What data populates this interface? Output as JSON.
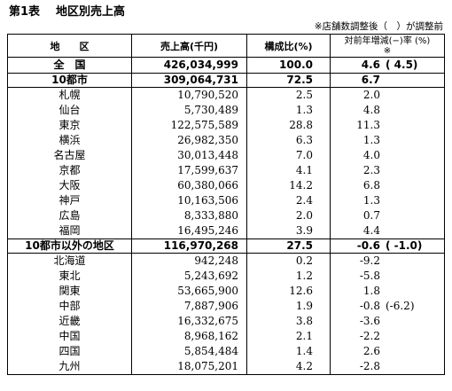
{
  "title": {
    "number": "第1表",
    "text": "地区別売上高"
  },
  "note": "※店舗数調整後（　）が調整前",
  "table": {
    "headers": {
      "region": "地　　区",
      "sales": "売上高(千円)",
      "share": "構成比(%)",
      "change": "対前年増減(−)率 (%)",
      "change_note": "※"
    },
    "rows": [
      {
        "level": "total",
        "region": "全　国",
        "sales": "426,034,999",
        "share": "100.0",
        "change": "4.6",
        "change_before": "( 4.5)"
      },
      {
        "level": "group",
        "region": "10都市",
        "sales": "309,064,731",
        "share": "72.5",
        "change": "6.7"
      },
      {
        "level": "region",
        "region": "札幌",
        "sales": "10,790,520",
        "share": "2.5",
        "change": "2.0"
      },
      {
        "level": "region",
        "region": "仙台",
        "sales": "5,730,489",
        "share": "1.3",
        "change": "4.8"
      },
      {
        "level": "region",
        "region": "東京",
        "sales": "122,575,589",
        "share": "28.8",
        "change": "11.3"
      },
      {
        "level": "region",
        "region": "横浜",
        "sales": "26,982,350",
        "share": "6.3",
        "change": "1.3"
      },
      {
        "level": "region",
        "region": "名古屋",
        "sales": "30,013,448",
        "share": "7.0",
        "change": "4.0"
      },
      {
        "level": "region",
        "region": "京都",
        "sales": "17,599,637",
        "share": "4.1",
        "change": "2.3"
      },
      {
        "level": "region",
        "region": "大阪",
        "sales": "60,380,066",
        "share": "14.2",
        "change": "6.8"
      },
      {
        "level": "region",
        "region": "神戸",
        "sales": "10,163,506",
        "share": "2.4",
        "change": "1.3"
      },
      {
        "level": "region",
        "region": "広島",
        "sales": "8,333,880",
        "share": "2.0",
        "change": "0.7"
      },
      {
        "level": "region",
        "region": "福岡",
        "sales": "16,495,246",
        "share": "3.9",
        "change": "4.4"
      },
      {
        "level": "group",
        "region": "10都市以外の地区",
        "sales": "116,970,268",
        "share": "27.5",
        "change": "-0.6",
        "change_before": "( -1.0)"
      },
      {
        "level": "region",
        "region": "北海道",
        "sales": "942,248",
        "share": "0.2",
        "change": "-9.2"
      },
      {
        "level": "region",
        "region": "東北",
        "sales": "5,243,692",
        "share": "1.2",
        "change": "-5.8"
      },
      {
        "level": "region",
        "region": "関東",
        "sales": "53,665,900",
        "share": "12.6",
        "change": "1.8"
      },
      {
        "level": "region",
        "region": "中部",
        "sales": "7,887,906",
        "share": "1.9",
        "change": "-0.8",
        "change_before": "(-6.2)"
      },
      {
        "level": "region",
        "region": "近畿",
        "sales": "16,332,675",
        "share": "3.8",
        "change": "-3.6"
      },
      {
        "level": "region",
        "region": "中国",
        "sales": "8,968,162",
        "share": "2.1",
        "change": "-2.2"
      },
      {
        "level": "region",
        "region": "四国",
        "sales": "5,854,484",
        "share": "1.4",
        "change": "2.6"
      },
      {
        "level": "region",
        "region": "九州",
        "sales": "18,075,201",
        "share": "4.2",
        "change": "-2.8"
      }
    ]
  }
}
